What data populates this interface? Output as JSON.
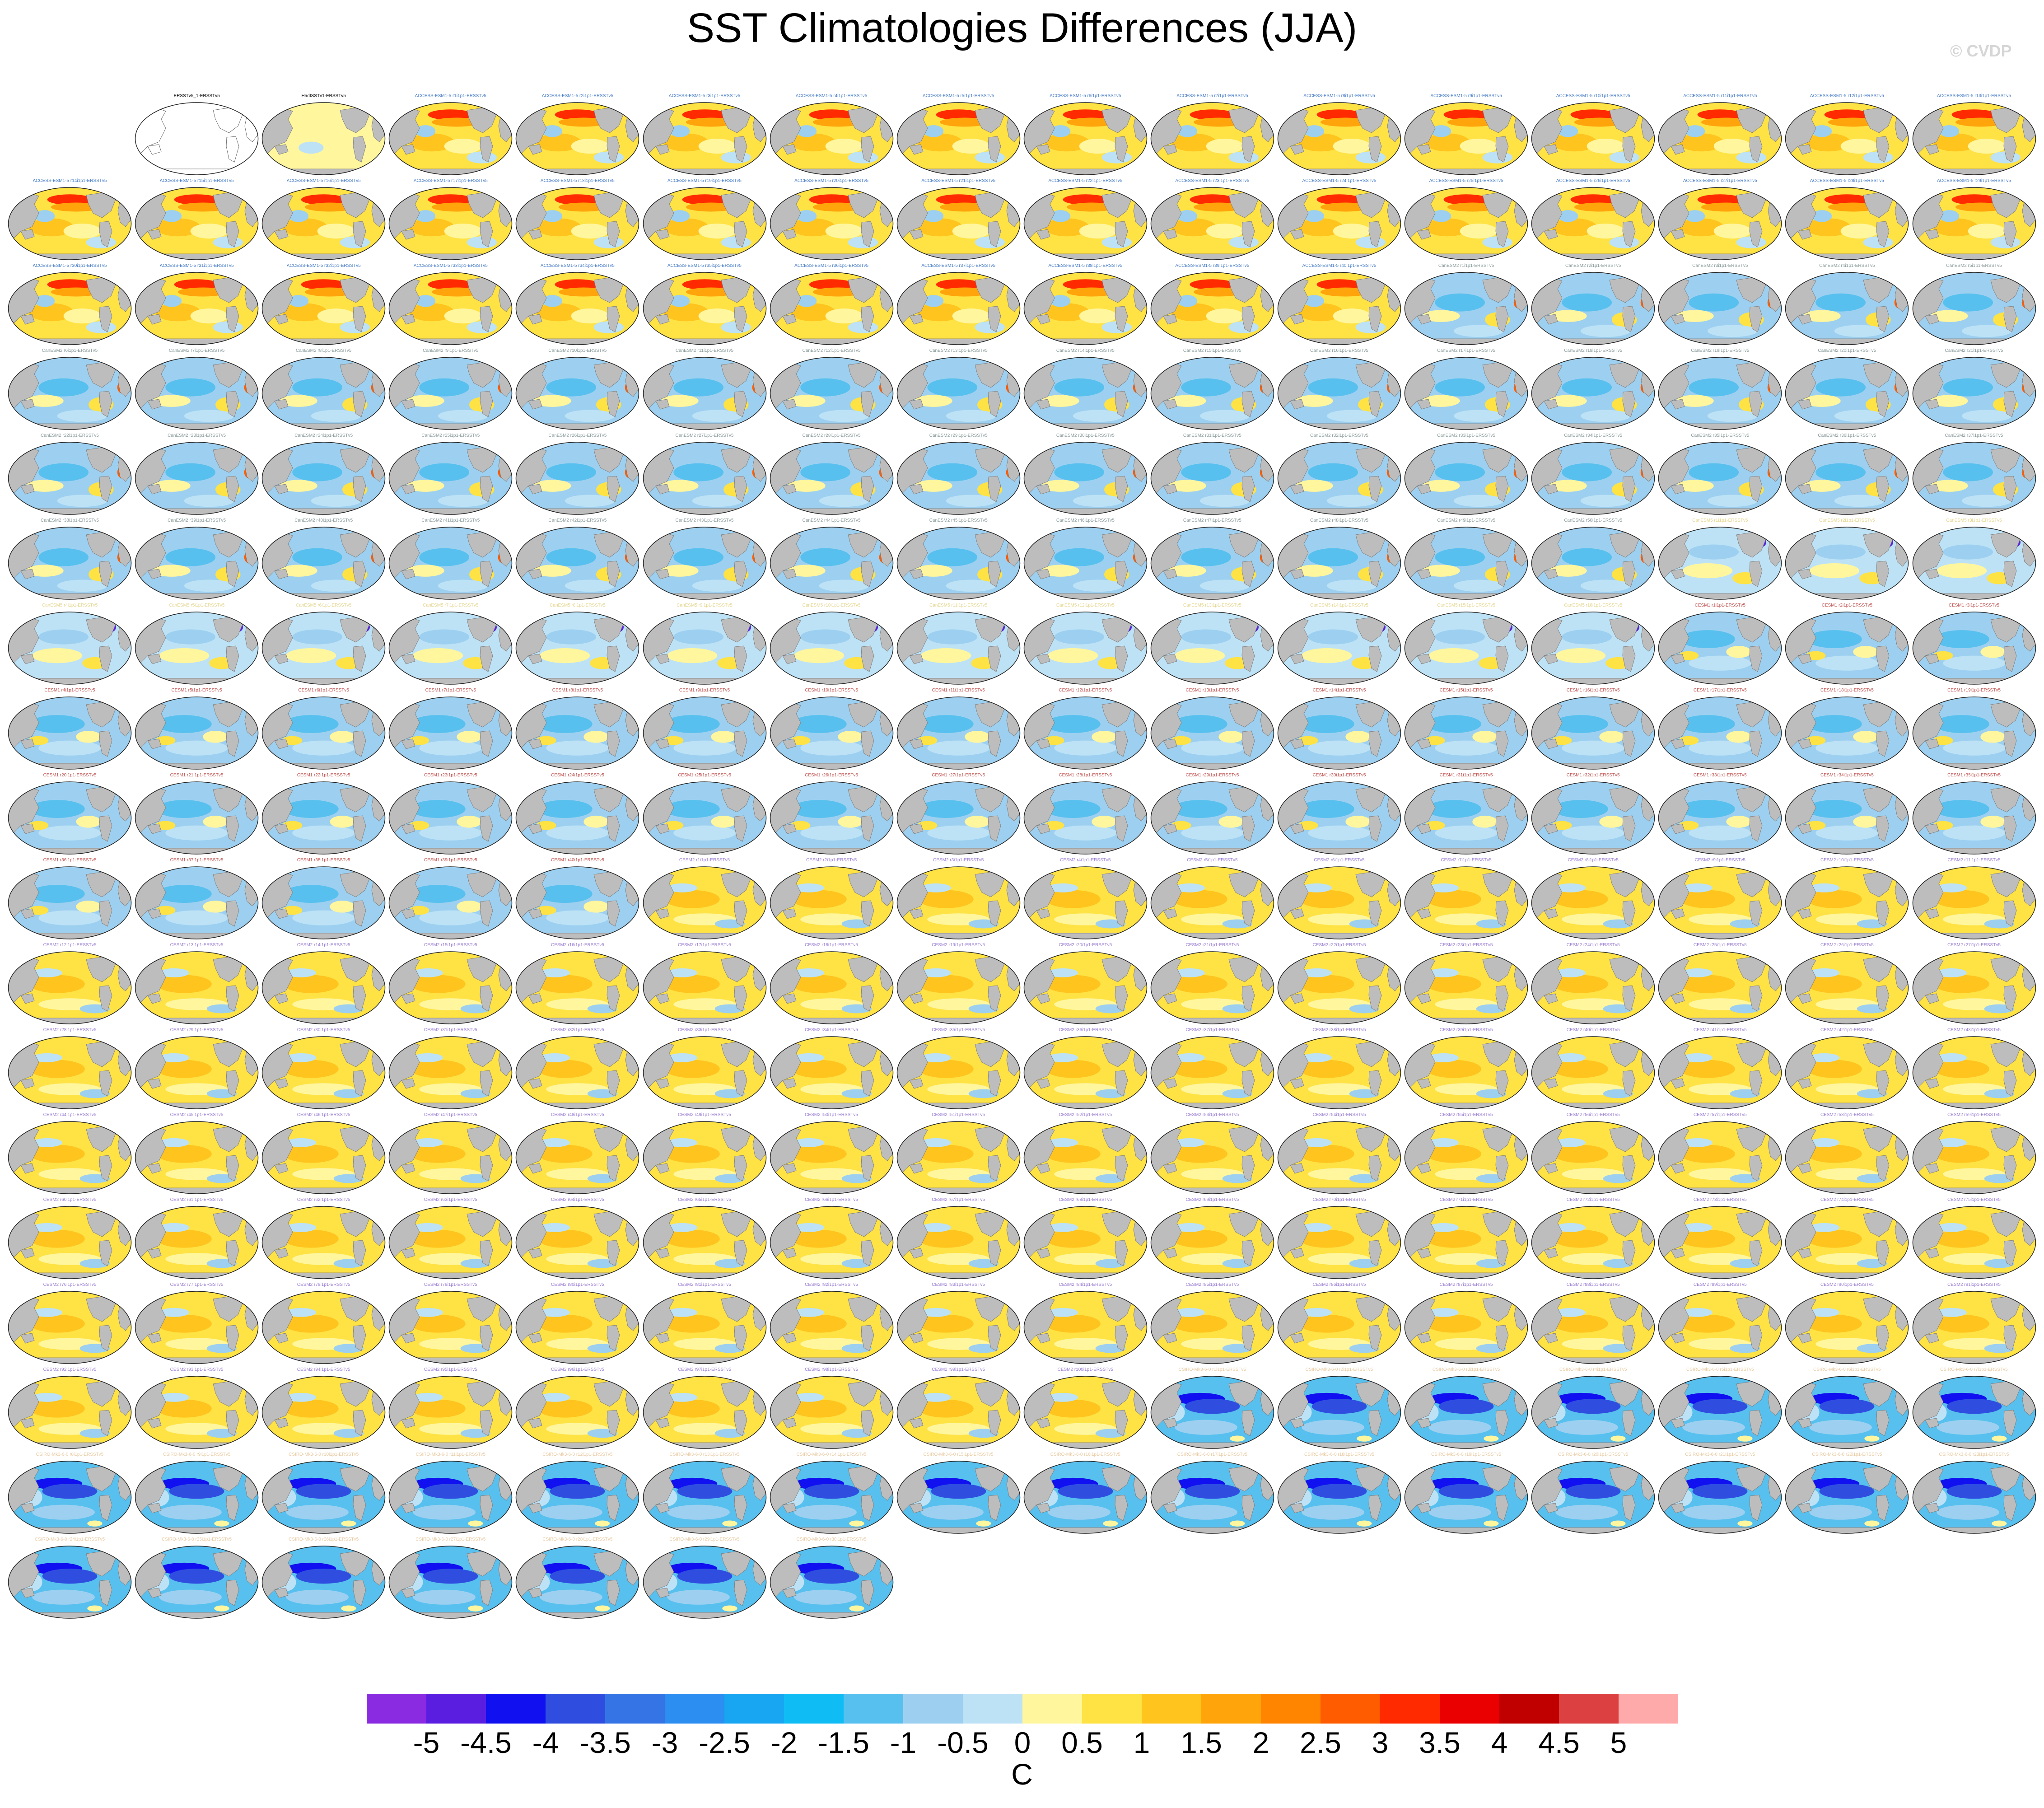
{
  "title": "SST Climatologies Differences (JJA)",
  "watermark": "© CVDP",
  "reference_panels": [
    {
      "label": "ERSSTv5_1-ERSSTv5",
      "pattern": "reference"
    },
    {
      "label": "HadISSTv1-ERSSTv5",
      "pattern": "hadisst"
    }
  ],
  "ensembles": [
    {
      "prefix": "ACCESS-ESM1-5",
      "count": 40,
      "pattern": "access",
      "title_color": "#4a7fc8"
    },
    {
      "prefix": "CanESM2",
      "count": 50,
      "pattern": "canesm2",
      "title_color": "#8a9a9a"
    },
    {
      "prefix": "CanESM5",
      "count": 16,
      "pattern": "canesm5",
      "title_color": "#e4d48a"
    },
    {
      "prefix": "CESM1",
      "count": 40,
      "pattern": "cesm1",
      "title_color": "#c0504d"
    },
    {
      "prefix": "CESM2",
      "count": 100,
      "pattern": "cesm2",
      "title_color": "#9b7fd4"
    },
    {
      "prefix": "CSIRO-Mk3-6-0",
      "count": 30,
      "pattern": "csiro",
      "title_color": "#e8c9a0"
    }
  ],
  "colorbar": {
    "colors": [
      "#8a2be2",
      "#5a1ee0",
      "#1010f0",
      "#2f4ee0",
      "#3574e4",
      "#2c8ef0",
      "#18a6f2",
      "#10bcf4",
      "#58c0ee",
      "#9dd0f0",
      "#bde2f6",
      "#fff69e",
      "#ffe244",
      "#ffc41e",
      "#ffa40a",
      "#ff8400",
      "#ff5c00",
      "#ff2a00",
      "#ea0000",
      "#c00000",
      "#dc4040",
      "#ffaaaa"
    ],
    "ticks": [
      "-5",
      "-4.5",
      "-4",
      "-3.5",
      "-3",
      "-2.5",
      "-2",
      "-1.5",
      "-1",
      "-0.5",
      "0",
      "0.5",
      "1",
      "1.5",
      "2",
      "2.5",
      "3",
      "3.5",
      "4",
      "4.5",
      "5"
    ],
    "units": "C"
  }
}
